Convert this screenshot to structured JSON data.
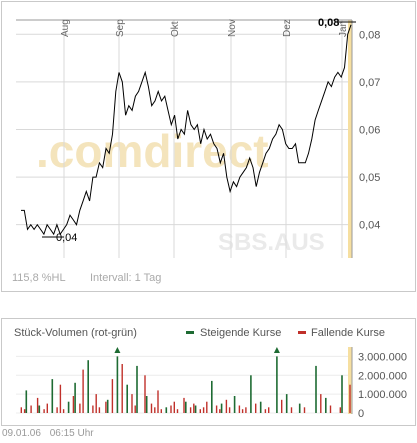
{
  "price_chart": {
    "months": [
      "Aug",
      "Sep",
      "Okt",
      "Nov",
      "Dez",
      "Jan"
    ],
    "y_ticks": [
      "0,08",
      "0,07",
      "0,06",
      "0,05",
      "0,04"
    ],
    "high_label": "0,08",
    "low_label": "0,04",
    "volatility": "115,8 %HL",
    "interval": "Intervall: 1 Tag",
    "watermark": ".comdirect",
    "symbol_watermark": "SBS.AUS"
  },
  "volume_chart": {
    "title": "Stück-Volumen (rot-grün)",
    "legend_up": "Steigende Kurse",
    "legend_down": "Fallende Kurse",
    "y_ticks": [
      "3.000.000",
      "2.000.000",
      "1.000.000",
      "0"
    ]
  },
  "footer": {
    "date": "09.01.06",
    "time": "06:15 Uhr"
  },
  "colors": {
    "line": "#000000",
    "up": "#1e6b33",
    "down": "#c0302a",
    "grid": "#d9d9d9",
    "highlight": "#f6dfa0",
    "watermark": "#f4e4bc"
  },
  "chart_data": [
    {
      "type": "line",
      "title": "",
      "xlabel": "",
      "ylabel": "",
      "x_ticks": [
        "Aug",
        "Sep",
        "Okt",
        "Nov",
        "Dez",
        "Jan"
      ],
      "ylim": [
        0.033,
        0.083
      ],
      "y_ticks": [
        0.04,
        0.05,
        0.06,
        0.07,
        0.08
      ],
      "grid": true,
      "series": [
        {
          "values": [
            0.043,
            0.043,
            0.039,
            0.04,
            0.039,
            0.04,
            0.039,
            0.038,
            0.04,
            0.039,
            0.038,
            0.04,
            0.038,
            0.039,
            0.04,
            0.042,
            0.041,
            0.04,
            0.043,
            0.045,
            0.047,
            0.045,
            0.05,
            0.05,
            0.053,
            0.052,
            0.056,
            0.055,
            0.059,
            0.068,
            0.072,
            0.07,
            0.063,
            0.065,
            0.064,
            0.067,
            0.068,
            0.07,
            0.072,
            0.069,
            0.065,
            0.066,
            0.068,
            0.066,
            0.067,
            0.064,
            0.061,
            0.063,
            0.058,
            0.06,
            0.059,
            0.064,
            0.061,
            0.06,
            0.061,
            0.057,
            0.06,
            0.058,
            0.059,
            0.057,
            0.056,
            0.053,
            0.055,
            0.05,
            0.047,
            0.049,
            0.048,
            0.05,
            0.051,
            0.052,
            0.054,
            0.052,
            0.048,
            0.051,
            0.053,
            0.055,
            0.056,
            0.058,
            0.059,
            0.061,
            0.06,
            0.057,
            0.056,
            0.056,
            0.057,
            0.053,
            0.053,
            0.053,
            0.055,
            0.058,
            0.062,
            0.064,
            0.066,
            0.068,
            0.07,
            0.069,
            0.071,
            0.072,
            0.071,
            0.073,
            0.08,
            0.082
          ]
        }
      ]
    },
    {
      "type": "bar",
      "title": "Stück-Volumen (rot-grün)",
      "xlabel": "",
      "ylabel": "",
      "ylim": [
        0,
        3500000
      ],
      "y_ticks": [
        0,
        1000000,
        2000000,
        3000000
      ],
      "legend": "top-right",
      "series": [
        {
          "name": "Steigende Kurse",
          "values": [
            0,
            0,
            1200000,
            0,
            0,
            0,
            400000,
            0,
            0,
            0,
            1800000,
            0,
            0,
            0,
            0,
            600000,
            0,
            1600000,
            0,
            0,
            0,
            2800000,
            0,
            0,
            0,
            0,
            0,
            700000,
            0,
            0,
            3000000,
            0,
            0,
            1500000,
            0,
            0,
            2500000,
            0,
            0,
            900000,
            0,
            0,
            0,
            0,
            0,
            300000,
            0,
            0,
            0,
            0,
            0,
            600000,
            0,
            0,
            400000,
            0,
            0,
            0,
            0,
            1700000,
            0,
            0,
            500000,
            0,
            0,
            0,
            900000,
            0,
            0,
            0,
            0,
            2000000,
            0,
            0,
            600000,
            0,
            0,
            0,
            0,
            3000000,
            0,
            0,
            1000000,
            0,
            0,
            0,
            500000,
            0,
            0,
            0,
            0,
            2500000,
            0,
            0,
            800000,
            0,
            0,
            0,
            0,
            2000000,
            0,
            0
          ]
        },
        {
          "name": "Fallende Kurse",
          "values": [
            300000,
            200000,
            0,
            400000,
            0,
            800000,
            0,
            200000,
            500000,
            0,
            0,
            300000,
            1500000,
            200000,
            0,
            0,
            900000,
            0,
            500000,
            2300000,
            0,
            0,
            400000,
            1000000,
            300000,
            0,
            600000,
            0,
            1800000,
            0,
            0,
            2600000,
            0,
            0,
            1000000,
            400000,
            0,
            0,
            2000000,
            0,
            500000,
            300000,
            1200000,
            200000,
            0,
            0,
            400000,
            600000,
            200000,
            0,
            800000,
            0,
            300000,
            500000,
            0,
            200000,
            300000,
            600000,
            0,
            0,
            400000,
            200000,
            0,
            700000,
            300000,
            0,
            0,
            400000,
            200000,
            300000,
            0,
            0,
            500000,
            0,
            0,
            200000,
            300000,
            0,
            0,
            0,
            700000,
            0,
            0,
            300000,
            0,
            0,
            0,
            300000,
            0,
            0,
            0,
            0,
            1000000,
            0,
            0,
            400000,
            0,
            0,
            300000,
            0,
            0,
            1500000
          ]
        }
      ]
    }
  ]
}
